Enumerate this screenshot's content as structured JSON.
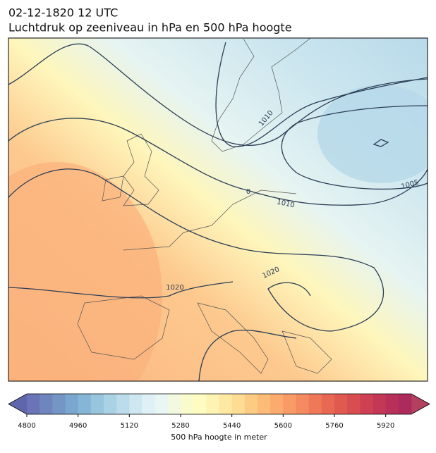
{
  "title": {
    "line1": "02-12-1820 12 UTC",
    "line2": "Luchtdruk op zeeniveau in hPa en 500 hPa hoogte"
  },
  "map": {
    "contour_labels": [
      "1010",
      "0",
      "1010",
      "1005",
      "1020",
      "1020"
    ]
  },
  "chart_data": {
    "type": "colorbar",
    "xlabel": "500 hPa hoogte in meter",
    "xlim": [
      4800,
      6000
    ],
    "xticks": [
      4800,
      4960,
      5120,
      5280,
      5440,
      5600,
      5760,
      5920
    ],
    "extend_colors": [
      "#5f66ab",
      "#b3405f"
    ],
    "colors": [
      "#6b74b6",
      "#6e85bd",
      "#7396c5",
      "#7aa7cf",
      "#86b6d7",
      "#98c5de",
      "#aad2e5",
      "#bcdceb",
      "#cee7f0",
      "#dff1f6",
      "#e9f6f3",
      "#f2f9e0",
      "#f9fbcc",
      "#fefcc0",
      "#fef3b2",
      "#fee9a3",
      "#fddc93",
      "#fdcc84",
      "#fcbb77",
      "#fbab6d",
      "#f89b66",
      "#f48a5f",
      "#ef7858",
      "#e86853",
      "#e15a50",
      "#d84d4f",
      "#cf4152",
      "#c43756",
      "#b8305a",
      "#ac2a5c"
    ]
  }
}
